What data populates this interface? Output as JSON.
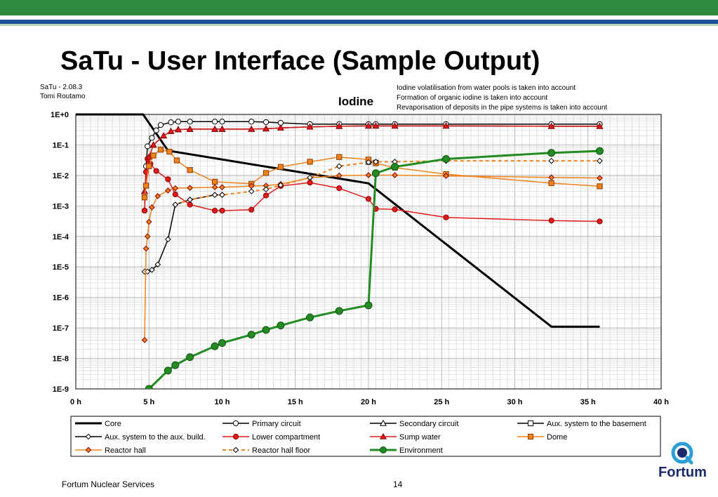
{
  "slide": {
    "title": "SaTu - User Interface (Sample Output)",
    "version": "SaTu - 2.08.3",
    "author": "Tomi Routamo",
    "notes": [
      "Iodine volatilisation from water pools is taken into account",
      "Formation of organic iodine is taken into account",
      "Revaporisation of deposits in the pipe systems is taken into account"
    ],
    "footer_left": "Fortum Nuclear Services",
    "page_number": "14",
    "logo_text": "Fortum",
    "colors": {
      "top_band": "#2e8b3e",
      "blue_band": "#1f4e9c",
      "logo": "#1a2a6c"
    }
  },
  "chart_data": {
    "type": "line",
    "title": "Iodine",
    "x_unit_suffix": " h",
    "xlim": [
      0,
      40
    ],
    "x_ticks": [
      0,
      5,
      10,
      15,
      20,
      25,
      30,
      35,
      40
    ],
    "y_scale": "log",
    "ylim": [
      1e-09,
      1
    ],
    "y_ticks": [
      "1E+0",
      "1E-1",
      "1E-2",
      "1E-3",
      "1E-4",
      "1E-5",
      "1E-6",
      "1E-7",
      "1E-8",
      "1E-9"
    ],
    "grid": true,
    "legend_position": "bottom",
    "series": [
      {
        "name": "Core",
        "color": "#000000",
        "width": 3,
        "dash": "",
        "marker": "none",
        "x": [
          0,
          4.6,
          6.3,
          20,
          32.5,
          35.8
        ],
        "y": [
          1,
          1,
          0.065,
          0.0055,
          1.1e-07,
          1.1e-07
        ]
      },
      {
        "name": "Primary circuit",
        "color": "#000000",
        "width": 1.5,
        "dash": "",
        "marker": "circle",
        "fill": "#ffffff",
        "x": [
          4.7,
          4.8,
          4.9,
          5.2,
          5.5,
          5.8,
          6.5,
          7,
          7.8,
          9.5,
          10,
          12,
          13,
          14,
          16,
          18,
          20,
          20.5,
          21.8,
          25.3,
          32.5,
          35.8
        ],
        "y": [
          0.0007,
          0.02,
          0.09,
          0.17,
          0.3,
          0.45,
          0.55,
          0.58,
          0.58,
          0.58,
          0.58,
          0.58,
          0.56,
          0.53,
          0.48,
          0.48,
          0.48,
          0.48,
          0.48,
          0.48,
          0.48,
          0.48
        ]
      },
      {
        "name": "Secondary circuit",
        "color": "#000000",
        "width": 1.5,
        "dash": "",
        "marker": "triangle",
        "fill": "#ffffff",
        "x": [
          4.7,
          5.0,
          5.3,
          6.0,
          6.5,
          7,
          7.8,
          9.5,
          10,
          12,
          13,
          14,
          16,
          18,
          20,
          20.5,
          21.8,
          25.3,
          32.5,
          35.8
        ],
        "y": [
          0.003,
          0.04,
          0.1,
          0.2,
          0.28,
          0.32,
          0.33,
          0.33,
          0.33,
          0.33,
          0.34,
          0.36,
          0.39,
          0.41,
          0.42,
          0.42,
          0.42,
          0.42,
          0.41,
          0.41
        ]
      },
      {
        "name": "Aux. system to the basement",
        "color": "#000000",
        "width": 1.5,
        "dash": "",
        "marker": "square",
        "fill": "#ffffff",
        "x": [
          20,
          20.5
        ],
        "y": [
          0.028,
          0.026
        ]
      },
      {
        "name": "Aux. system to the aux. build.",
        "color": "#000000",
        "width": 1.5,
        "dash": "",
        "marker": "diamond",
        "fill": "#ffffff",
        "x": [
          4.7,
          4.9,
          5.2,
          5.6,
          6.3,
          6.8,
          7.8,
          9.5,
          10
        ],
        "y": [
          7e-06,
          7e-06,
          8e-06,
          1.2e-05,
          8e-05,
          0.0011,
          0.0016,
          0.0023,
          0.0023
        ]
      },
      {
        "name": "Lower compartment",
        "color": "#e31a1c",
        "width": 1.5,
        "dash": "",
        "marker": "circle",
        "fill": "#e31a1c",
        "x": [
          4.7,
          4.8,
          4.9,
          5.1,
          5.5,
          6.3,
          6.8,
          7.8,
          9.5,
          10,
          12,
          13,
          14,
          16,
          18,
          20,
          20.5,
          21.8,
          25.3,
          32.5,
          35.8
        ],
        "y": [
          0.0007,
          0.013,
          0.035,
          0.024,
          0.014,
          0.0075,
          0.0024,
          0.0011,
          0.0007,
          0.0007,
          0.00075,
          0.0022,
          0.0045,
          0.0058,
          0.0038,
          0.0017,
          0.0008,
          0.00077,
          0.00042,
          0.00033,
          0.00031
        ]
      },
      {
        "name": "Sump water",
        "color": "#e31a1c",
        "width": 1.5,
        "dash": "",
        "marker": "triangle",
        "fill": "#e31a1c",
        "x": [
          4.7,
          5.0,
          5.3,
          6.0,
          6.5,
          7,
          7.8,
          9.5,
          10,
          12,
          13,
          14,
          16,
          18,
          20,
          20.5,
          21.8,
          25.3,
          32.5,
          35.8
        ],
        "y": [
          0.003,
          0.04,
          0.1,
          0.2,
          0.28,
          0.32,
          0.33,
          0.33,
          0.33,
          0.33,
          0.34,
          0.36,
          0.39,
          0.41,
          0.42,
          0.42,
          0.42,
          0.42,
          0.41,
          0.41
        ]
      },
      {
        "name": "Dome",
        "color": "#f0821e",
        "width": 1.5,
        "dash": "",
        "marker": "square",
        "fill": "#f0821e",
        "x": [
          4.7,
          4.8,
          5.0,
          5.3,
          5.8,
          6.4,
          6.9,
          7.8,
          9.5,
          12,
          13,
          14,
          16,
          18,
          20,
          20.5,
          21.8,
          25.3,
          32.5,
          35.8
        ],
        "y": [
          0.0019,
          0.0046,
          0.02,
          0.045,
          0.07,
          0.06,
          0.031,
          0.015,
          0.0062,
          0.0053,
          0.012,
          0.019,
          0.028,
          0.04,
          0.033,
          0.025,
          0.018,
          0.011,
          0.0056,
          0.0044
        ]
      },
      {
        "name": "Reactor hall",
        "color": "#f0821e",
        "width": 1.5,
        "dash": "",
        "marker": "diamond",
        "fill": "#f0821e",
        "x": [
          4.7,
          4.8,
          4.9,
          5.0,
          5.2,
          5.6,
          6.3,
          6.8,
          7.8,
          9.5,
          10,
          12,
          13,
          14,
          16,
          18,
          20,
          21.8,
          25.3,
          32.5,
          35.8
        ],
        "y": [
          4e-08,
          4e-05,
          0.0001,
          0.0003,
          0.0009,
          0.0021,
          0.0032,
          0.0038,
          0.0039,
          0.0041,
          0.0041,
          0.0045,
          0.0046,
          0.0052,
          0.0083,
          0.0099,
          0.0102,
          0.0102,
          0.0097,
          0.0086,
          0.0082
        ]
      },
      {
        "name": "Reactor hall floor",
        "color": "#f0821e",
        "width": 2,
        "dash": "5,4",
        "marker": "diamond",
        "fill": "#ffffff",
        "marker_stroke": "#000000",
        "x": [
          6.8,
          7.8,
          9.5,
          10,
          12,
          13,
          14,
          16,
          18,
          20,
          20.5,
          21.8,
          25.3,
          32.5,
          35.8
        ],
        "y": [
          0.0011,
          0.0016,
          0.0023,
          0.0023,
          0.003,
          0.0035,
          0.0048,
          0.0085,
          0.02,
          0.027,
          0.028,
          0.028,
          0.03,
          0.03,
          0.03
        ]
      },
      {
        "name": "Environment",
        "color": "#228b22",
        "width": 3,
        "dash": "",
        "marker": "circle",
        "fill": "#228b22",
        "x": [
          5.0,
          6.3,
          6.8,
          7.8,
          9.5,
          10,
          12,
          13,
          14,
          16,
          18,
          20,
          20.5,
          21.8,
          25.3,
          32.5,
          35.8
        ],
        "y": [
          1e-09,
          4e-09,
          6e-09,
          1.1e-08,
          2.5e-08,
          3.2e-08,
          6e-08,
          8.6e-08,
          1.2e-07,
          2.2e-07,
          3.6e-07,
          5.5e-07,
          0.0118,
          0.0192,
          0.0345,
          0.055,
          0.063
        ]
      }
    ]
  }
}
